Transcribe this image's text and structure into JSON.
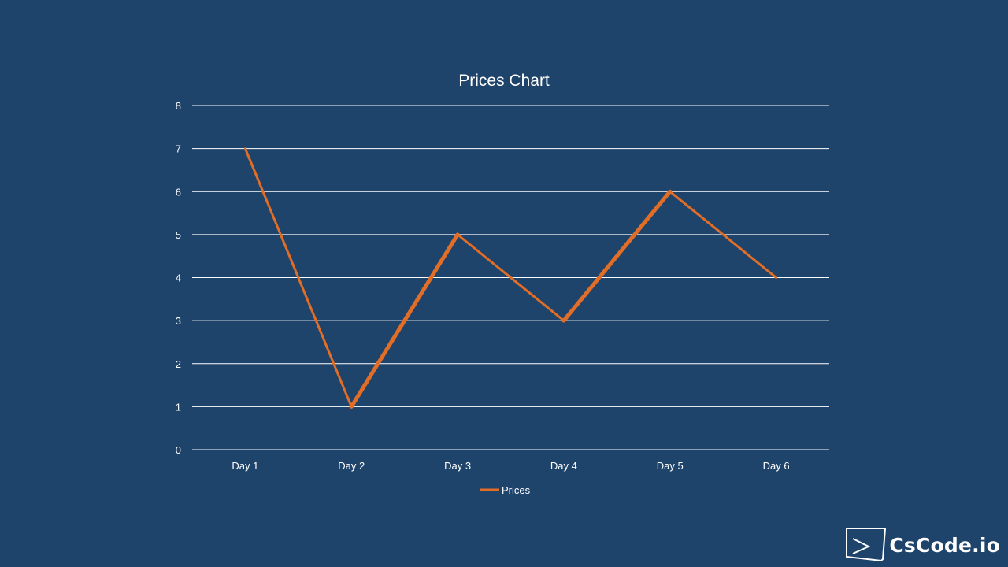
{
  "brand": {
    "logo_icon": "cscode-logo-icon",
    "text": "CsCode.io"
  },
  "colors": {
    "background": "#1f446b",
    "line": "#e26d26",
    "gridline": "#ffffff",
    "text": "#ffffff"
  },
  "chart_data": {
    "type": "line",
    "title": "Prices Chart",
    "xlabel": "",
    "ylabel": "",
    "categories": [
      "Day 1",
      "Day 2",
      "Day 3",
      "Day 4",
      "Day 5",
      "Day 6"
    ],
    "series": [
      {
        "name": "Prices",
        "values": [
          7,
          1,
          5,
          3,
          6,
          4
        ]
      }
    ],
    "ylim": [
      0,
      8
    ],
    "yticks": [
      0,
      1,
      2,
      3,
      4,
      5,
      6,
      7,
      8
    ],
    "grid": true,
    "legend": "bottom"
  }
}
